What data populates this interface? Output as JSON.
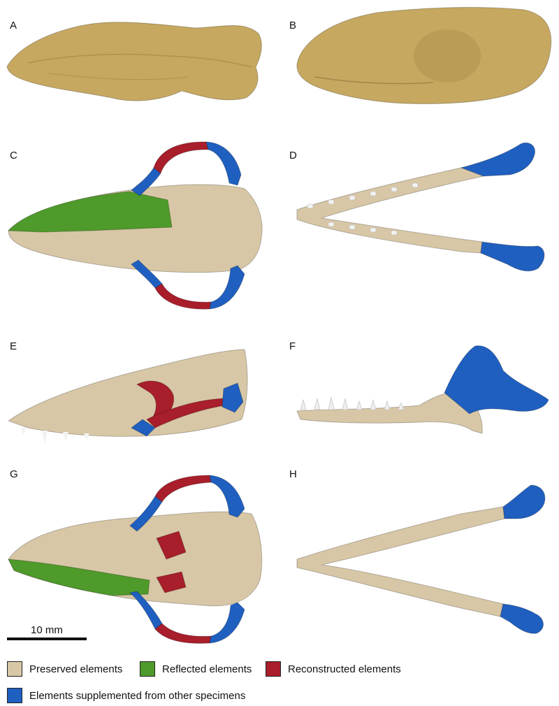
{
  "panels": {
    "a": {
      "label": "A"
    },
    "b": {
      "label": "B"
    },
    "c": {
      "label": "C"
    },
    "d": {
      "label": "D"
    },
    "e": {
      "label": "E"
    },
    "f": {
      "label": "F"
    },
    "g": {
      "label": "G"
    },
    "h": {
      "label": "H"
    }
  },
  "scale_bar": {
    "label": "10 mm"
  },
  "colors": {
    "preserved": "#d8c7a6",
    "reflected": "#4e9a2a",
    "reconstructed": "#a81e2a",
    "supplemented": "#1f5fc0",
    "fossil": "#c6a860",
    "teeth": "#eeeeee"
  },
  "legend": {
    "preserved": {
      "label": "Preserved elements"
    },
    "reflected": {
      "label": "Reflected elements"
    },
    "reconstructed": {
      "label": "Reconstructed elements"
    },
    "supplemented": {
      "label": "Elements supplemented from other specimens"
    }
  }
}
